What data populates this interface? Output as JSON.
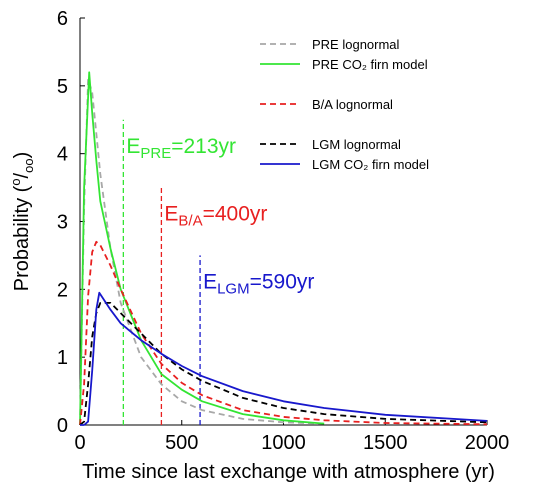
{
  "chart_data": {
    "type": "line",
    "x_label": "Time since last exchange with atmosphere (yr)",
    "y_label": {
      "pre": "Probability (",
      "sup": "o",
      "mid": "/",
      "sub": "oo",
      "post": ")"
    },
    "xlim": [
      0,
      2000
    ],
    "ylim": [
      0,
      6
    ],
    "xticks": [
      0,
      500,
      1000,
      1500,
      2000
    ],
    "yticks": [
      0,
      1,
      2,
      3,
      4,
      5,
      6
    ],
    "series": [
      {
        "name": "PRE lognormal",
        "color": "#a8a8a8",
        "dashed": true,
        "x": [
          0,
          20,
          40,
          60,
          80,
          100,
          150,
          200,
          300,
          400,
          500,
          600,
          800,
          1000,
          1200
        ],
        "values": [
          0,
          3.2,
          5.1,
          4.9,
          4.3,
          3.7,
          2.6,
          1.8,
          1.0,
          0.6,
          0.35,
          0.22,
          0.09,
          0.04,
          0.02
        ]
      },
      {
        "name": "PRE CO₂ firn model",
        "color": "#33e533",
        "dashed": false,
        "x": [
          0,
          20,
          45,
          60,
          80,
          100,
          150,
          200,
          300,
          400,
          500,
          600,
          800,
          1000,
          1200
        ],
        "values": [
          0,
          3.5,
          5.2,
          4.6,
          3.9,
          3.3,
          2.6,
          2.0,
          1.25,
          0.75,
          0.52,
          0.35,
          0.16,
          0.07,
          0.02
        ]
      },
      {
        "name": "B/A lognormal",
        "color": "#e82020",
        "dashed": true,
        "x": [
          0,
          20,
          40,
          60,
          80,
          100,
          150,
          200,
          300,
          400,
          500,
          600,
          800,
          1000,
          1200,
          1500,
          2000
        ],
        "values": [
          0,
          0.6,
          1.9,
          2.55,
          2.7,
          2.65,
          2.35,
          2.0,
          1.35,
          0.9,
          0.62,
          0.44,
          0.22,
          0.12,
          0.07,
          0.03,
          0.01
        ]
      },
      {
        "name": "LGM lognormal",
        "color": "#000000",
        "dashed": true,
        "x": [
          0,
          20,
          40,
          60,
          80,
          100,
          150,
          200,
          300,
          400,
          500,
          600,
          800,
          1000,
          1200,
          1500,
          2000
        ],
        "values": [
          0,
          0.05,
          0.6,
          1.3,
          1.65,
          1.8,
          1.8,
          1.65,
          1.35,
          1.05,
          0.82,
          0.65,
          0.4,
          0.25,
          0.16,
          0.09,
          0.04
        ]
      },
      {
        "name": "LGM CO₂ firn model",
        "color": "#1818cc",
        "dashed": false,
        "x": [
          0,
          20,
          40,
          60,
          80,
          95,
          150,
          200,
          300,
          400,
          500,
          600,
          800,
          1000,
          1200,
          1500,
          2000
        ],
        "values": [
          0,
          0,
          0.05,
          0.8,
          1.7,
          1.95,
          1.7,
          1.5,
          1.25,
          1.05,
          0.87,
          0.72,
          0.5,
          0.35,
          0.25,
          0.15,
          0.06
        ]
      }
    ],
    "markers": [
      {
        "x": 213,
        "top": 4.5,
        "color": "#33e533",
        "label": {
          "main": "E",
          "sub": "PRE",
          "rest": "=213yr"
        }
      },
      {
        "x": 400,
        "top": 3.5,
        "color": "#e82020",
        "label": {
          "main": "E",
          "sub": "B/A",
          "rest": "=400yr"
        }
      },
      {
        "x": 590,
        "top": 2.5,
        "color": "#1818cc",
        "label": {
          "main": "E",
          "sub": "LGM",
          "rest": "=590yr"
        }
      }
    ]
  }
}
